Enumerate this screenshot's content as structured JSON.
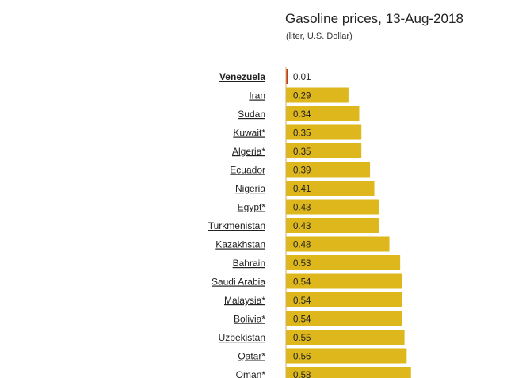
{
  "chart_data": {
    "type": "bar",
    "orientation": "horizontal",
    "title": "Gasoline prices, 13-Aug-2018",
    "subtitle": "(liter, U.S. Dollar)",
    "categories": [
      "Venezuela",
      "Iran",
      "Sudan",
      "Kuwait*",
      "Algeria*",
      "Ecuador",
      "Nigeria",
      "Egypt*",
      "Turkmenistan",
      "Kazakhstan",
      "Bahrain",
      "Saudi Arabia",
      "Malaysia*",
      "Bolivia*",
      "Uzbekistan",
      "Qatar*",
      "Oman*"
    ],
    "values": [
      0.01,
      0.29,
      0.34,
      0.35,
      0.35,
      0.39,
      0.41,
      0.43,
      0.43,
      0.48,
      0.53,
      0.54,
      0.54,
      0.54,
      0.55,
      0.56,
      0.58
    ],
    "value_labels": [
      "0.01",
      "0.29",
      "0.34",
      "0.35",
      "0.35",
      "0.39",
      "0.41",
      "0.43",
      "0.43",
      "0.48",
      "0.53",
      "0.54",
      "0.54",
      "0.54",
      "0.55",
      "0.56",
      "0.58"
    ],
    "highlight_category": "Venezuela",
    "bar_color": "#ddb71b",
    "highlight_color": "#c0392b",
    "xlim": [
      0,
      0.6
    ],
    "grid": false,
    "legend": "none"
  }
}
